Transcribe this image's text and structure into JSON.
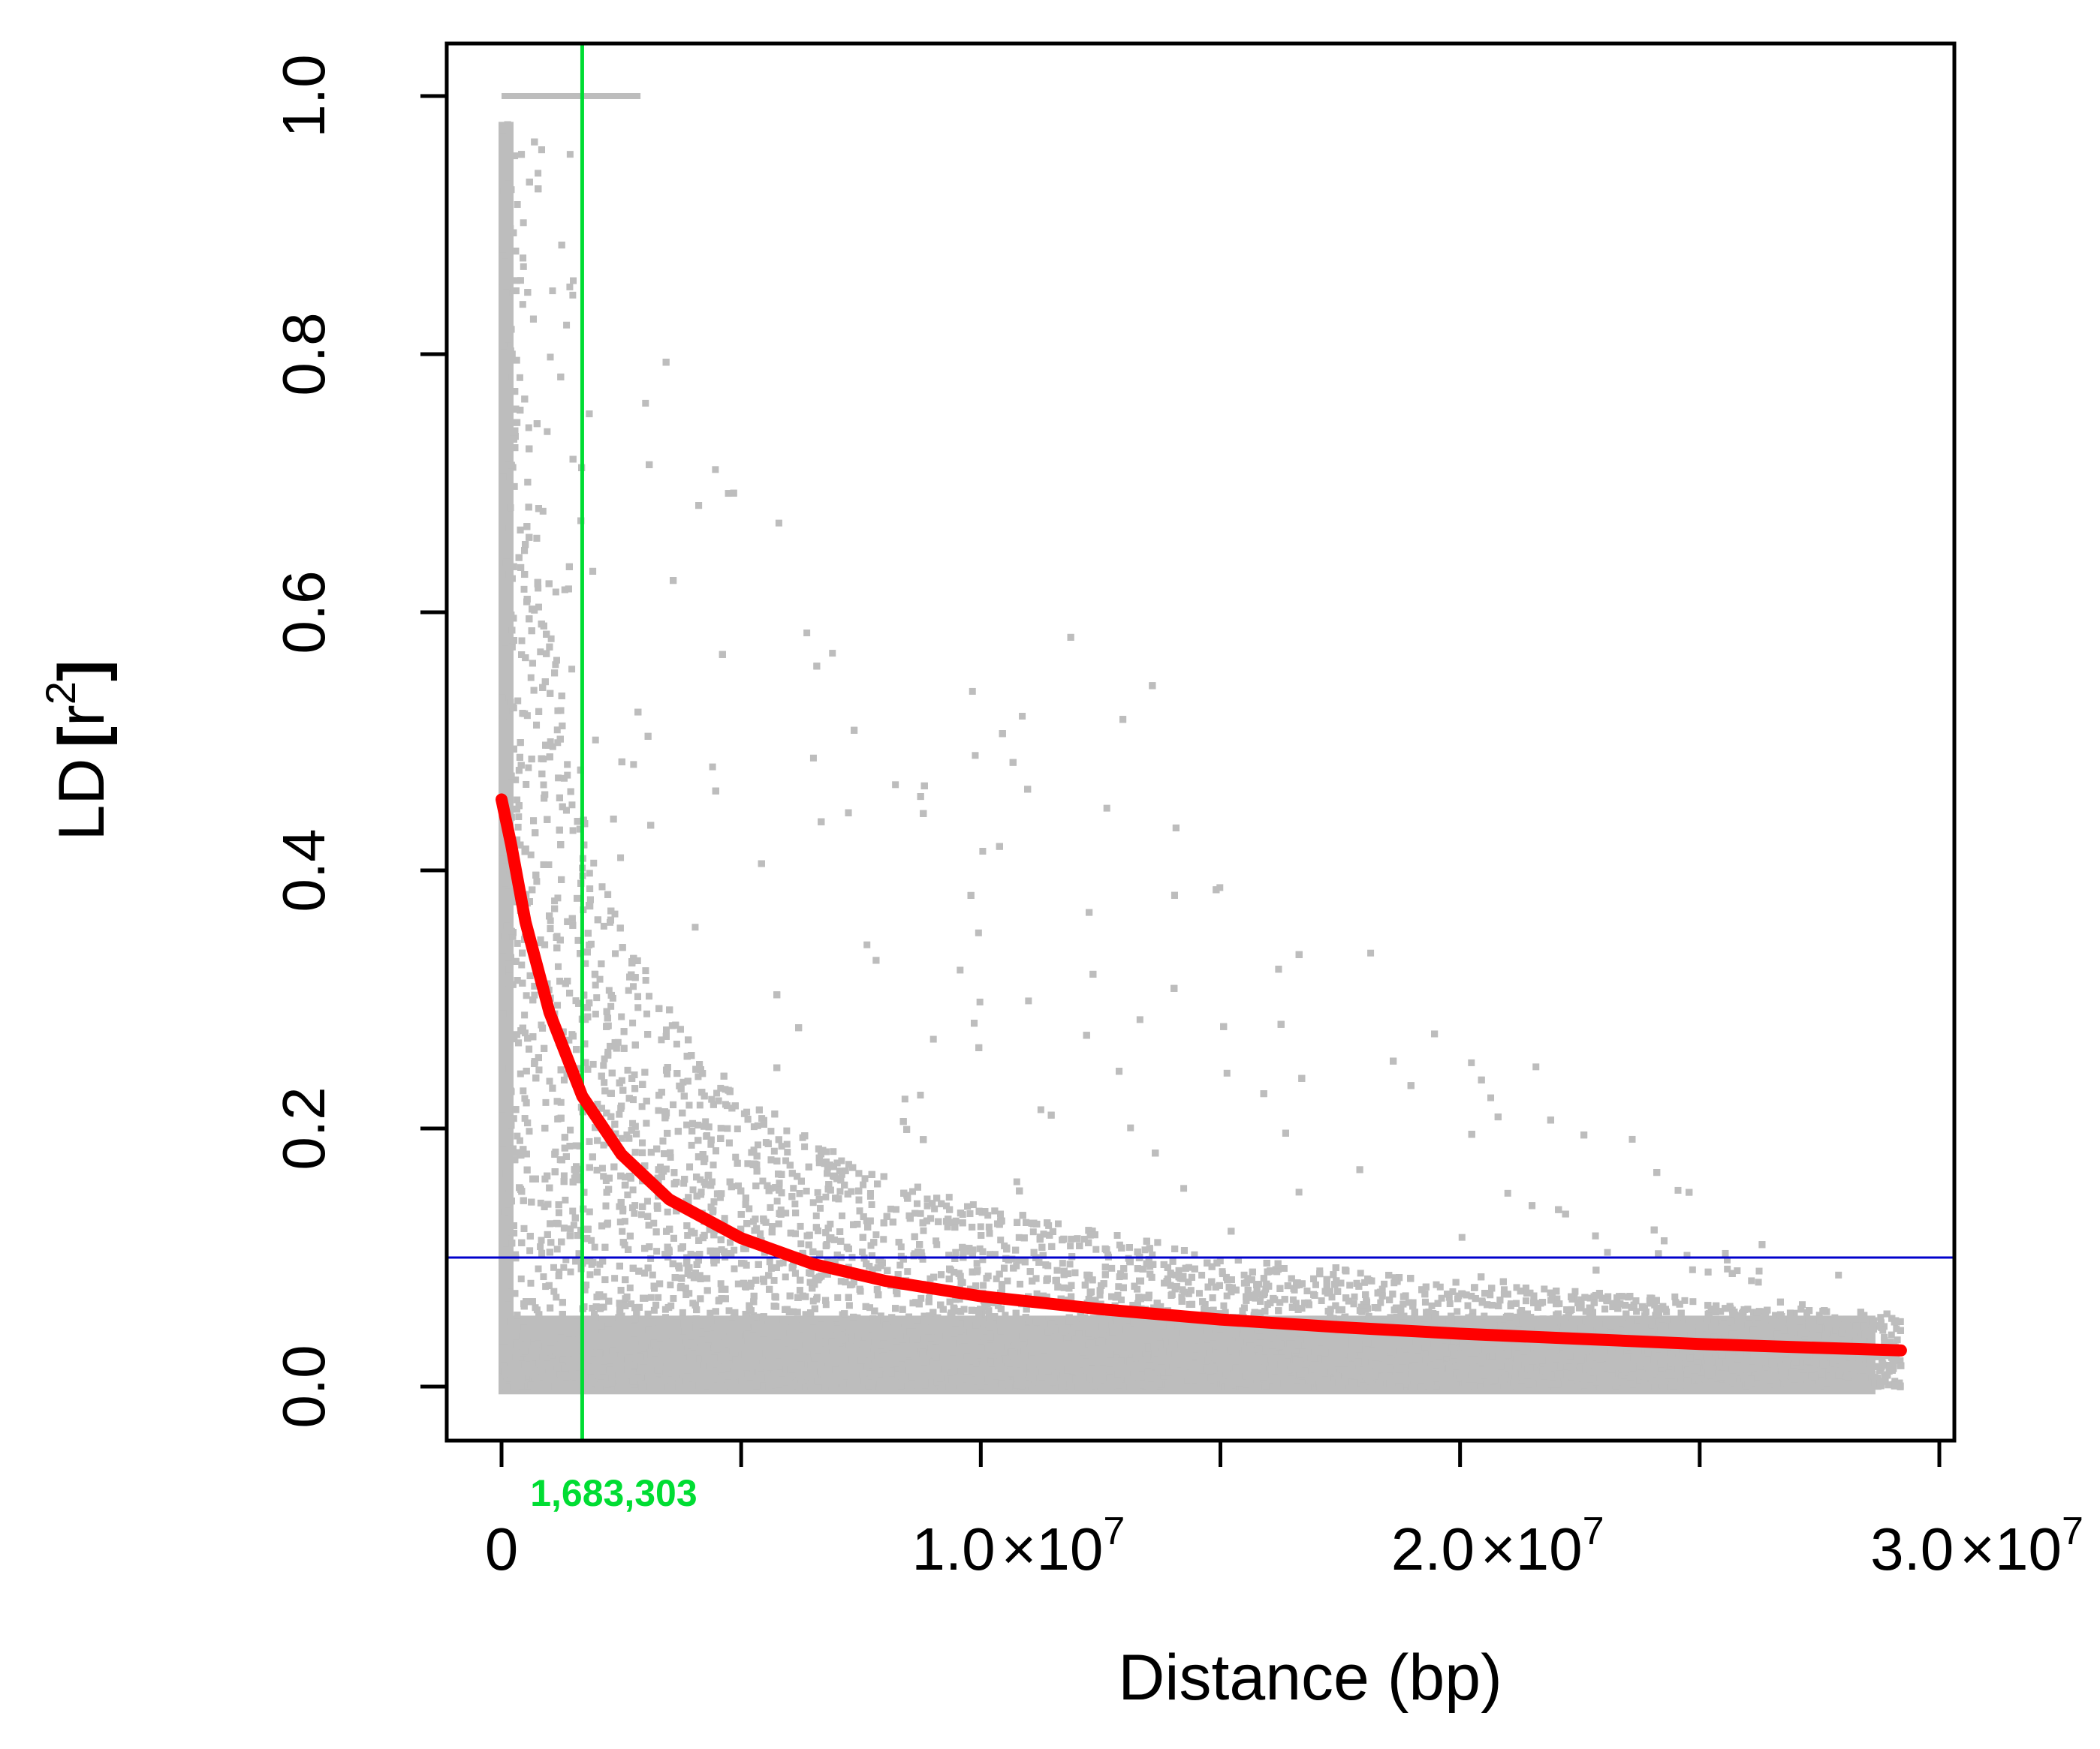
{
  "chart_data": {
    "type": "scatter",
    "title": "",
    "xlabel": "Distance (bp)",
    "ylabel_main": "LD",
    "ylabel_sup_base": "r",
    "ylabel_sup_exp": "2",
    "xlim": [
      0,
      30000000
    ],
    "ylim": [
      0,
      1
    ],
    "x_ticks": [
      {
        "value": 0,
        "mantissa": "0",
        "exp": ""
      },
      {
        "value": 5000000,
        "mantissa": "",
        "exp": ""
      },
      {
        "value": 10000000,
        "mantissa": "1.0",
        "exp": "7"
      },
      {
        "value": 15000000,
        "mantissa": "",
        "exp": ""
      },
      {
        "value": 20000000,
        "mantissa": "2.0",
        "exp": "7"
      },
      {
        "value": 25000000,
        "mantissa": "",
        "exp": ""
      },
      {
        "value": 30000000,
        "mantissa": "3.0",
        "exp": "7"
      }
    ],
    "x_tick_times": "×10",
    "y_ticks": [
      {
        "value": 0.0,
        "label": "0.0"
      },
      {
        "value": 0.2,
        "label": "0.2"
      },
      {
        "value": 0.4,
        "label": "0.4"
      },
      {
        "value": 0.6,
        "label": "0.6"
      },
      {
        "value": 0.8,
        "label": "0.8"
      },
      {
        "value": 1.0,
        "label": "1.0"
      }
    ],
    "grid": false,
    "series": [
      {
        "kind": "scatter",
        "color": "#bdbdbd",
        "x_max": 29200000,
        "description_points": "dense grey point cloud of pairwise r2 values, highest density near 0 distance"
      },
      {
        "kind": "decay_curve",
        "color": "#ff0000",
        "x": [
          0,
          200000,
          500000,
          1000000,
          1683303,
          2500000,
          3500000,
          5000000,
          6500000,
          8000000,
          10000000,
          12500000,
          15000000,
          17500000,
          20000000,
          22500000,
          25000000,
          27500000,
          29200000
        ],
        "y": [
          0.455,
          0.42,
          0.36,
          0.29,
          0.225,
          0.18,
          0.145,
          0.115,
          0.095,
          0.082,
          0.07,
          0.06,
          0.052,
          0.046,
          0.041,
          0.037,
          0.033,
          0.03,
          0.028
        ]
      }
    ],
    "hline": {
      "y": 0.1,
      "color": "#0000cc"
    },
    "vline": {
      "x": 1683303,
      "color": "#00dd33",
      "label": "1,683,303"
    }
  }
}
